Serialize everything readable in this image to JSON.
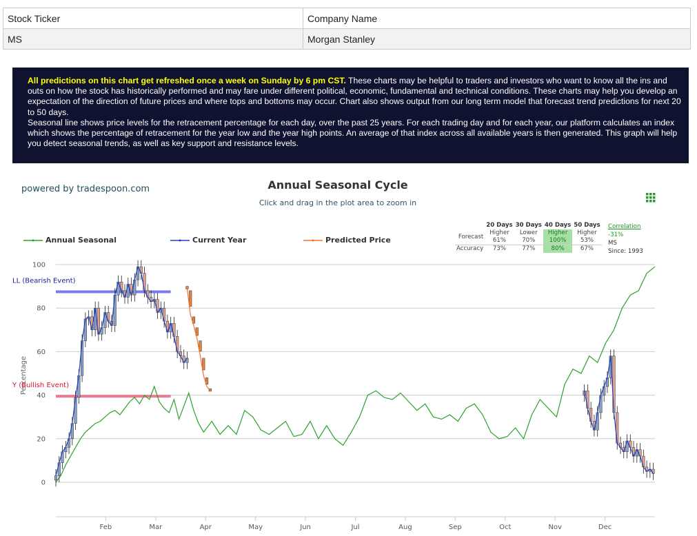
{
  "stock_table": {
    "header_ticker": "Stock Ticker",
    "header_company": "Company Name",
    "ticker": "MS",
    "company": "Morgan Stanley"
  },
  "info": {
    "highlight": "All predictions on this chart get refreshed once a week on Sunday by 6 pm CST.",
    "text1": " These charts may be helpful to traders and investors who want to know all the ins and outs on how the stock has historically performed and may fare under different political, economic, fundamental and technical conditions. These charts may help you develop an expectation of the direction of future prices and where tops and bottoms may occur. Chart also shows output from our long term model that forecast trend predictions for next 20 to 50 days.",
    "text2": "Seasonal line shows price levels for the retracement percentage for each day, over the past 25 years. For each trading day and for each year, our platform calculates an index which shows the percentage of retracement for the year low and the year high points. An average of that index across all available years is then generated. This graph will help you detect seasonal trends, as well as key support and resistance levels."
  },
  "powered_by": "powered by tradespoon.com",
  "forecast": {
    "headers": [
      "20 Days",
      "30 Days",
      "40 Days",
      "50 Days"
    ],
    "row_label_forecast": "Forecast",
    "row_label_accuracy": "Accuracy",
    "directions": [
      "Higher",
      "Lower",
      "Higher",
      "Higher"
    ],
    "probabilities": [
      "61%",
      "70%",
      "100%",
      "53%"
    ],
    "accuracy": [
      "73%",
      "77%",
      "80%",
      "67%"
    ],
    "correlation_label": "Correlation",
    "correlation_value": "-31%",
    "correlation_ticker": "MS",
    "since": "Since: 1993",
    "highlight_color": "#a7e0a7"
  },
  "chart_data": {
    "type": "line",
    "title": "Annual Seasonal Cycle",
    "subtitle": "Click and drag in the plot area to zoom in",
    "ylabel": "Percentage",
    "xlabel": "",
    "ylim": [
      0,
      100
    ],
    "yticks": [
      0,
      20,
      40,
      60,
      80,
      100
    ],
    "months": [
      "Feb",
      "Mar",
      "Apr",
      "May",
      "Jun",
      "Jul",
      "Aug",
      "Sep",
      "Oct",
      "Nov",
      "Dec"
    ],
    "x_range_days": [
      0,
      365
    ],
    "legend_position": "top",
    "colors": {
      "seasonal": "#2ca02c",
      "current": "#1f3fbf",
      "predicted": "#f07030",
      "sell_line": "#7b7bf0",
      "buy_line": "#f07890",
      "sell_text": "#1a1aa0",
      "buy_text": "#dd1133",
      "candle_up": "#8aa0c8",
      "candle_down": "#e0a090",
      "predicted_candle": "#e8823a"
    },
    "series": [
      {
        "name": "Annual Seasonal",
        "x": [
          0,
          3,
          6,
          9,
          12,
          15,
          18,
          21,
          24,
          27,
          30,
          33,
          36,
          39,
          42,
          45,
          48,
          51,
          54,
          57,
          60,
          63,
          66,
          69,
          72,
          75,
          78,
          81,
          84,
          87,
          90,
          95,
          100,
          105,
          110,
          115,
          120,
          125,
          130,
          135,
          140,
          145,
          150,
          155,
          160,
          165,
          170,
          175,
          180,
          185,
          190,
          195,
          200,
          205,
          210,
          215,
          220,
          225,
          230,
          235,
          240,
          245,
          250,
          255,
          260,
          265,
          270,
          275,
          280,
          285,
          290,
          295,
          300,
          305,
          310,
          315,
          320,
          325,
          330,
          335,
          340,
          345,
          350,
          355,
          360,
          365
        ],
        "values": [
          0,
          3,
          8,
          12,
          16,
          20,
          23,
          25,
          27,
          28,
          30,
          32,
          33,
          31,
          34,
          37,
          39,
          36,
          40,
          38,
          44,
          37,
          34,
          32,
          38,
          29,
          35,
          41,
          33,
          27,
          23,
          28,
          22,
          26,
          22,
          33,
          30,
          24,
          22,
          25,
          28,
          21,
          22,
          28,
          20,
          26,
          20,
          17,
          23,
          30,
          40,
          42,
          39,
          38,
          41,
          37,
          33,
          36,
          30,
          29,
          31,
          28,
          34,
          36,
          31,
          23,
          20,
          21,
          25,
          20,
          31,
          38,
          34,
          30,
          45,
          52,
          50,
          58,
          55,
          64,
          70,
          80,
          86,
          88,
          96,
          99
        ]
      },
      {
        "name": "Current Year",
        "x": [
          0,
          2,
          4,
          6,
          8,
          10,
          12,
          14,
          16,
          18,
          20,
          22,
          24,
          26,
          28,
          30,
          32,
          34,
          36,
          38,
          40,
          42,
          44,
          46,
          48,
          50,
          52,
          54,
          56,
          58,
          60,
          62,
          64,
          66,
          68,
          70,
          72,
          74,
          76,
          78,
          80,
          322,
          324,
          326,
          328,
          330,
          332,
          334,
          336,
          338,
          340,
          342,
          344,
          346,
          348,
          350,
          352,
          354,
          356,
          358,
          360,
          362,
          364
        ],
        "values": [
          3,
          9,
          14,
          16,
          20,
          27,
          39,
          49,
          65,
          75,
          76,
          70,
          80,
          68,
          71,
          78,
          74,
          72,
          86,
          92,
          88,
          85,
          91,
          86,
          93,
          99,
          96,
          88,
          85,
          83,
          84,
          78,
          80,
          74,
          69,
          73,
          67,
          60,
          58,
          55,
          57,
          42,
          34,
          28,
          24,
          32,
          40,
          44,
          48,
          58,
          32,
          18,
          16,
          14,
          19,
          16,
          12,
          15,
          12,
          7,
          5,
          6,
          4
        ]
      },
      {
        "name": "Predicted Price",
        "x": [
          80,
          82,
          84,
          86,
          88,
          90,
          92,
          94
        ],
        "values": [
          89,
          77,
          72,
          66,
          58,
          49,
          44,
          42
        ]
      }
    ],
    "annotations": [
      {
        "label": "SELL (Bearish Event)",
        "y": 87.5,
        "x_range": [
          0,
          70
        ],
        "display": "LL (Bearish Event)"
      },
      {
        "label": "BUY (Bullish Event)",
        "y": 39.5,
        "x_range": [
          0,
          70
        ],
        "display": "Y (Bullish Event)"
      }
    ],
    "grid": true
  }
}
